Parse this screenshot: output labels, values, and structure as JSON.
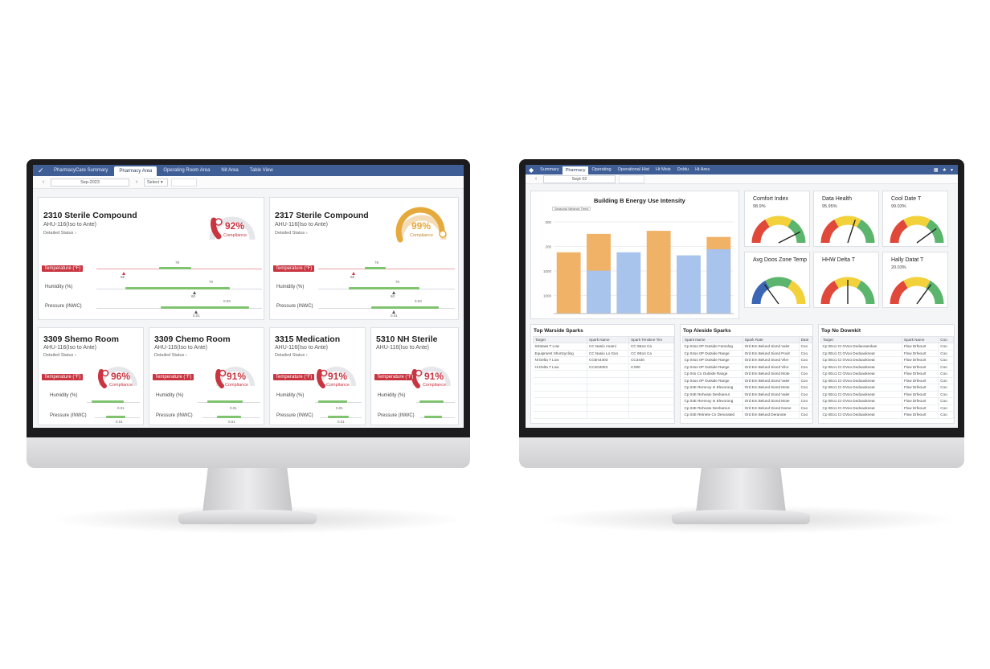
{
  "left": {
    "tabs": [
      "PharmacyCare Summary",
      "Pharmacy Area",
      "Operating Room Area",
      "Nit Area",
      "Table View"
    ],
    "active_tab_index": 1,
    "date": "Sep-2023",
    "select_label": "Select",
    "top_cards": [
      {
        "title": "2310 Sterile Compound",
        "subtitle": "AHU-116(Iso to Ante)",
        "link": "Detailed Status",
        "compliance_pct": "92%",
        "compliance_fraction": 0.92,
        "compliance_label": "Compliance",
        "accent_color": "#c83440",
        "metrics": [
          {
            "label": "Temperature (°F)",
            "alert": true,
            "top_tick": "78",
            "bottom_tick": "68"
          },
          {
            "label": "Humidity (%)",
            "alert": false,
            "top_tick": "70",
            "bottom_tick": "60"
          },
          {
            "label": "Pressure (INWC)",
            "alert": false,
            "top_tick": "0.03",
            "bottom_tick": "0.01"
          }
        ]
      },
      {
        "title": "2317 Sterile Compound",
        "subtitle": "AHU-116(Iso to Ante)",
        "link": "Detailed Status",
        "compliance_pct": "99%",
        "compliance_fraction": 0.99,
        "compliance_label": "Compliance",
        "accent_color": "#e6a93c",
        "metrics": [
          {
            "label": "Temperature (°F)",
            "alert": true,
            "top_tick": "78",
            "bottom_tick": "68"
          },
          {
            "label": "Humidity (%)",
            "alert": false,
            "top_tick": "70",
            "bottom_tick": "60"
          },
          {
            "label": "Pressure (INWC)",
            "alert": false,
            "top_tick": "0.03",
            "bottom_tick": "0.01"
          }
        ]
      }
    ],
    "bottom_cards": [
      {
        "title": "3309 Shemo Room",
        "subtitle": "AHU-116(Iso to Ante)",
        "link": "Detailed Status",
        "compliance_pct": "96%",
        "compliance_fraction": 0.96,
        "compliance_label": "Compliance",
        "metrics": [
          "Temperature (°F)",
          "Humidity (%)",
          "Pressure (INWC)"
        ],
        "ticks": [
          "0.01",
          "0.01"
        ]
      },
      {
        "title": "3309 Chemo Room",
        "subtitle": "AHU-116(Iso to Ante)",
        "link": "Detailed Status",
        "compliance_pct": "91%",
        "compliance_fraction": 0.91,
        "compliance_label": "Compliance",
        "metrics": [
          "Temperature (°F)",
          "Humidity (%)",
          "Pressure (INWC)"
        ],
        "ticks": [
          "0.01",
          "0.01"
        ]
      },
      {
        "title": "3315 Medication",
        "subtitle": "AHU-116(Iso to Ante)",
        "link": "Detailed Status",
        "compliance_pct": "91%",
        "compliance_fraction": 0.91,
        "compliance_label": "Compliance",
        "metrics": [
          "Temperature (°F)",
          "Humidity (%)",
          "Pressure (INWC)"
        ],
        "ticks": [
          "0.01",
          "0.01"
        ]
      },
      {
        "title": "5310 NH Sterile",
        "subtitle": "AHU-116(Iso to Ante)",
        "link": "",
        "compliance_pct": "91%",
        "compliance_fraction": 0.91,
        "compliance_label": "Compliance",
        "metrics": [
          "Temperature (°F)",
          "Humidity (%)",
          "Pressure (INWC)"
        ],
        "ticks": [
          "0.01",
          "0.01"
        ]
      }
    ]
  },
  "right": {
    "tabs": [
      "Summary",
      "Pharmacy",
      "Operating",
      "Operational Hist",
      "Ht Mois",
      "Doldu",
      "Ht Ares"
    ],
    "active_tab_index": 1,
    "date_field": "Sept 02",
    "colors": {
      "bar_orange": "#f0b266",
      "bar_blue": "#a8c4ec",
      "gauge_red": "#e0483a",
      "gauge_yellow": "#f2d13b",
      "gauge_green": "#5cb56c",
      "gauge_blue": "#3a66b3"
    },
    "chart_data": {
      "type": "bar",
      "title": "Building B Energy Use Intensity",
      "legend": "Seasonal Variance Trend",
      "y_ticks": [
        "300",
        "200",
        "1000",
        "1000",
        "800"
      ],
      "orange": [
        1.0,
        1.3,
        0.0,
        1.35,
        0.0,
        1.25
      ],
      "blue": [
        0.0,
        0.7,
        1.0,
        0.0,
        0.95,
        1.05
      ],
      "ylim": [
        0,
        1.6
      ]
    },
    "kpis": [
      {
        "title": "Comfort Index",
        "value": "98.9%",
        "fraction": 0.85,
        "scheme": "ryg"
      },
      {
        "title": "Data Health",
        "value": "95.95%",
        "fraction": 0.6,
        "scheme": "ryg"
      },
      {
        "title": "Cool Date T",
        "value": "99.03%",
        "fraction": 0.8,
        "scheme": "ryg"
      },
      {
        "title": "Avg Doos Zone Temp",
        "value": "",
        "fraction": 0.3,
        "scheme": "bgy"
      },
      {
        "title": "HHW Delta T",
        "value": "",
        "fraction": 0.5,
        "scheme": "ryg"
      },
      {
        "title": "Hally Datat T",
        "value": "20.03%",
        "fraction": 0.7,
        "scheme": "ryg"
      }
    ],
    "tables": [
      {
        "title": "Top Warside Sparks",
        "headers": [
          "Target",
          "Spark Name",
          "Spark Tenskne Tim"
        ],
        "rows": [
          [
            "Stratass T Low",
            "CC Nasio Anami",
            "CC 9Eo4 Ca"
          ],
          [
            "Equipment Shortcycling",
            "CC Nasio Lo Goo",
            "CC 9Eo4 Ca"
          ],
          [
            "Nl Delta T Low",
            "CC8m4403",
            "CC3440"
          ],
          [
            "Hi Delta T Low",
            "CC4O4003",
            "0.000"
          ],
          [
            "",
            "",
            ""
          ],
          [
            "",
            "",
            ""
          ],
          [
            "",
            "",
            ""
          ],
          [
            "",
            "",
            ""
          ],
          [
            "",
            "",
            ""
          ],
          [
            "",
            "",
            ""
          ],
          [
            "",
            "",
            ""
          ]
        ]
      },
      {
        "title": "Top Aleside Sparks",
        "headers": [
          "Spark Name",
          "Spark Rate",
          "Date"
        ],
        "rows": [
          [
            "Cp 04oo 0P Outside Farsolng",
            "Ord Em Belund Siond Valer",
            "Coo"
          ],
          [
            "Cp 04oo 0P Outside Range",
            "Ord Em Belund Siond Poolr",
            "Coo"
          ],
          [
            "Cp 04oo 0P Outside Range",
            "Ord Em Belund Siond Viler",
            "Coo"
          ],
          [
            "Cp 04oo 0P Outside Range",
            "Ord Em Belund Siond Vilor",
            "Coo"
          ],
          [
            "Cp 04o Co Outside Range",
            "Ord Em Belund Siond Mote",
            "Coo"
          ],
          [
            "Cp 04oo 0P Outside Range",
            "Ord Em Belund Siond Valer",
            "Coo"
          ],
          [
            "Cp 04E Rerenoy Is Elevorong",
            "Ord Em Belund Siond Mote",
            "Coo"
          ],
          [
            "Cp 04E Reheato Deshareut",
            "Ord Em Belund Siond Valer",
            "Coo"
          ],
          [
            "Cp 04E Rerenoy Is Elevorong",
            "Ord Em Belund Siond Mote",
            "Coo"
          ],
          [
            "Cp 04E Reheato Deshareut",
            "Ord Em Belund Siond Nome",
            "Coo"
          ],
          [
            "Cp 04E Retnete Cn Denorated",
            "Ord Em Belund Deranote",
            "Coo"
          ]
        ]
      },
      {
        "title": "Top No Downkit",
        "headers": [
          "Target",
          "Spark Name",
          "Coo"
        ],
        "rows": [
          [
            "Cp 0Eo1 Ct OVoo Dedaoraenkan",
            "Flow Drfeourt",
            "Coo"
          ],
          [
            "Cp 0Eo1 Ct OVoo Dedoaokneat",
            "Flow Drfeourt",
            "Coo"
          ],
          [
            "Cp 0Eo1 Ct OVoo Dedoaokneat",
            "Flow Drfeourt",
            "Coo"
          ],
          [
            "Cp 0Eo1 Ct OVoo Dedoaokneat",
            "Flow Drfeourt",
            "Coo"
          ],
          [
            "Cp 0Eo1 Ct OVoo Dedoaokneat",
            "Flow Drfeourt",
            "Coo"
          ],
          [
            "Cp 0Eo1 Ct OVoo Dedoaokneat",
            "Flow Drfeourt",
            "Coo"
          ],
          [
            "Cp 0Eo1 Ct OVoo Dedoaokneat",
            "Flow Drfeourt",
            "Coo"
          ],
          [
            "Cp 0Eo1 Ct OVoo Dedoaokneat",
            "Flow Drfeourt",
            "Coo"
          ],
          [
            "Cp 0Eo1 Ct OVoo Dedoaokneat",
            "Flow Drfeourt",
            "Coo"
          ],
          [
            "Cp 0Eo1 Ct OVoo Dedoaokneat",
            "Flow Drfeourt",
            "Coo"
          ],
          [
            "Cp 0Eo1 Ct OVoo Dedoaokneat",
            "Flow Drfeourt",
            "Coo"
          ]
        ]
      }
    ]
  }
}
